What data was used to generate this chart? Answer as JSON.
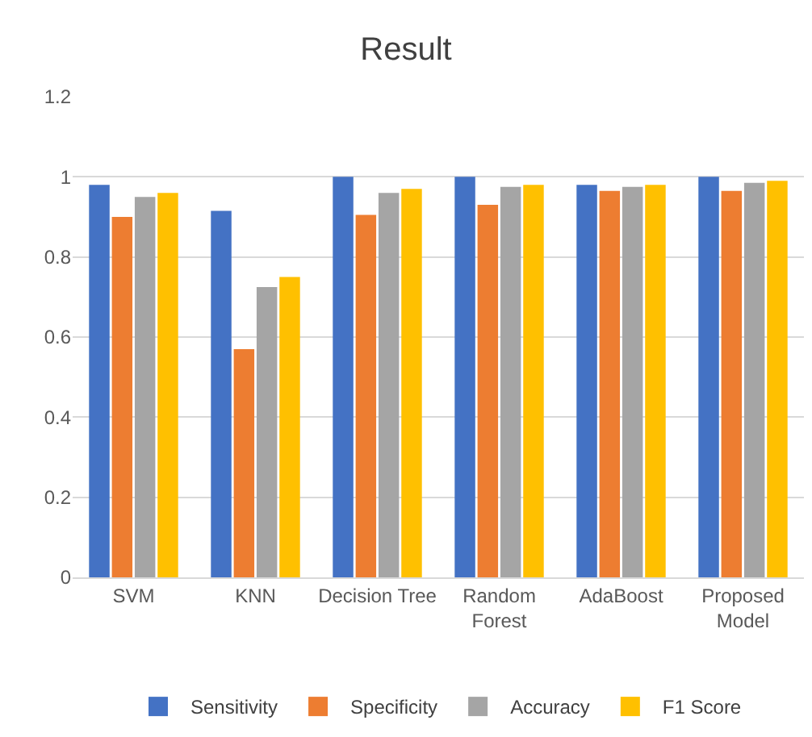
{
  "chart_data": {
    "type": "bar",
    "title": "Result",
    "categories": [
      "SVM",
      "KNN",
      "Decision Tree",
      "Random\nForest",
      "AdaBoost",
      "Proposed\nModel"
    ],
    "series": [
      {
        "name": "Sensitivity",
        "color": "#4472c4",
        "values": [
          0.98,
          0.915,
          1.0,
          1.0,
          0.98,
          1.0
        ]
      },
      {
        "name": "Specificity",
        "color": "#ed7d31",
        "values": [
          0.9,
          0.57,
          0.905,
          0.93,
          0.965,
          0.965
        ]
      },
      {
        "name": "Accuracy",
        "color": "#a5a5a5",
        "values": [
          0.95,
          0.725,
          0.96,
          0.975,
          0.975,
          0.985
        ]
      },
      {
        "name": "F1 Score",
        "color": "#ffc000",
        "values": [
          0.96,
          0.75,
          0.97,
          0.98,
          0.98,
          0.99
        ]
      }
    ],
    "ylim": [
      0,
      1.2
    ],
    "yticks": [
      0,
      {
        "value": 0.2,
        "label": "0.2"
      },
      {
        "value": 0.4,
        "label": "0.4"
      },
      {
        "value": 0.6,
        "label": "0.6"
      },
      {
        "value": 0.8,
        "label": "0.8"
      },
      1,
      {
        "value": 1.2,
        "label": "1.2"
      }
    ],
    "grid": "y",
    "legend": "bottom"
  }
}
